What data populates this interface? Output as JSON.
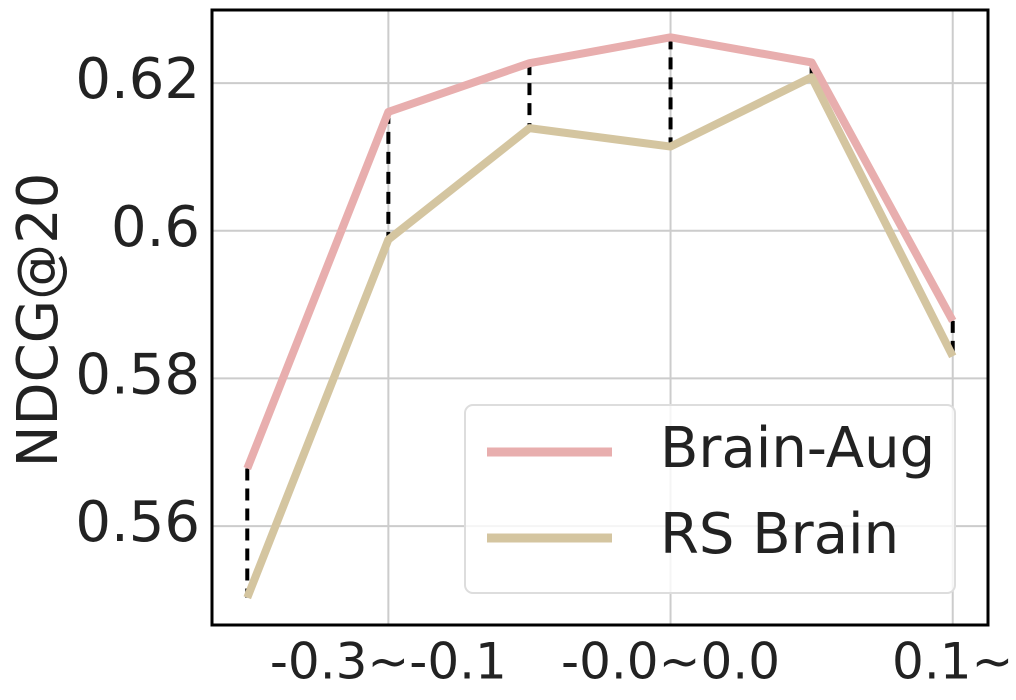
{
  "chart_data": {
    "type": "line",
    "y_label": "NDCG@20",
    "categories": [
      null,
      "-0.3~-0.1",
      null,
      "-0.0~0.0",
      null,
      "0.1~"
    ],
    "series": [
      {
        "name": "Brain-Aug",
        "color": "#e8aeae",
        "values": [
          0.5678,
          0.6161,
          0.6227,
          0.6262,
          0.6228,
          0.5878
        ]
      },
      {
        "name": "RS Brain",
        "color": "#d4c5a0",
        "values": [
          0.5503,
          0.5988,
          0.6139,
          0.6114,
          0.6208,
          0.583
        ]
      }
    ],
    "ylim": [
      0.5466,
      0.6299
    ],
    "yticks": [
      0.56,
      0.58,
      0.6,
      0.62
    ],
    "grid": true,
    "legend": "lower right"
  }
}
